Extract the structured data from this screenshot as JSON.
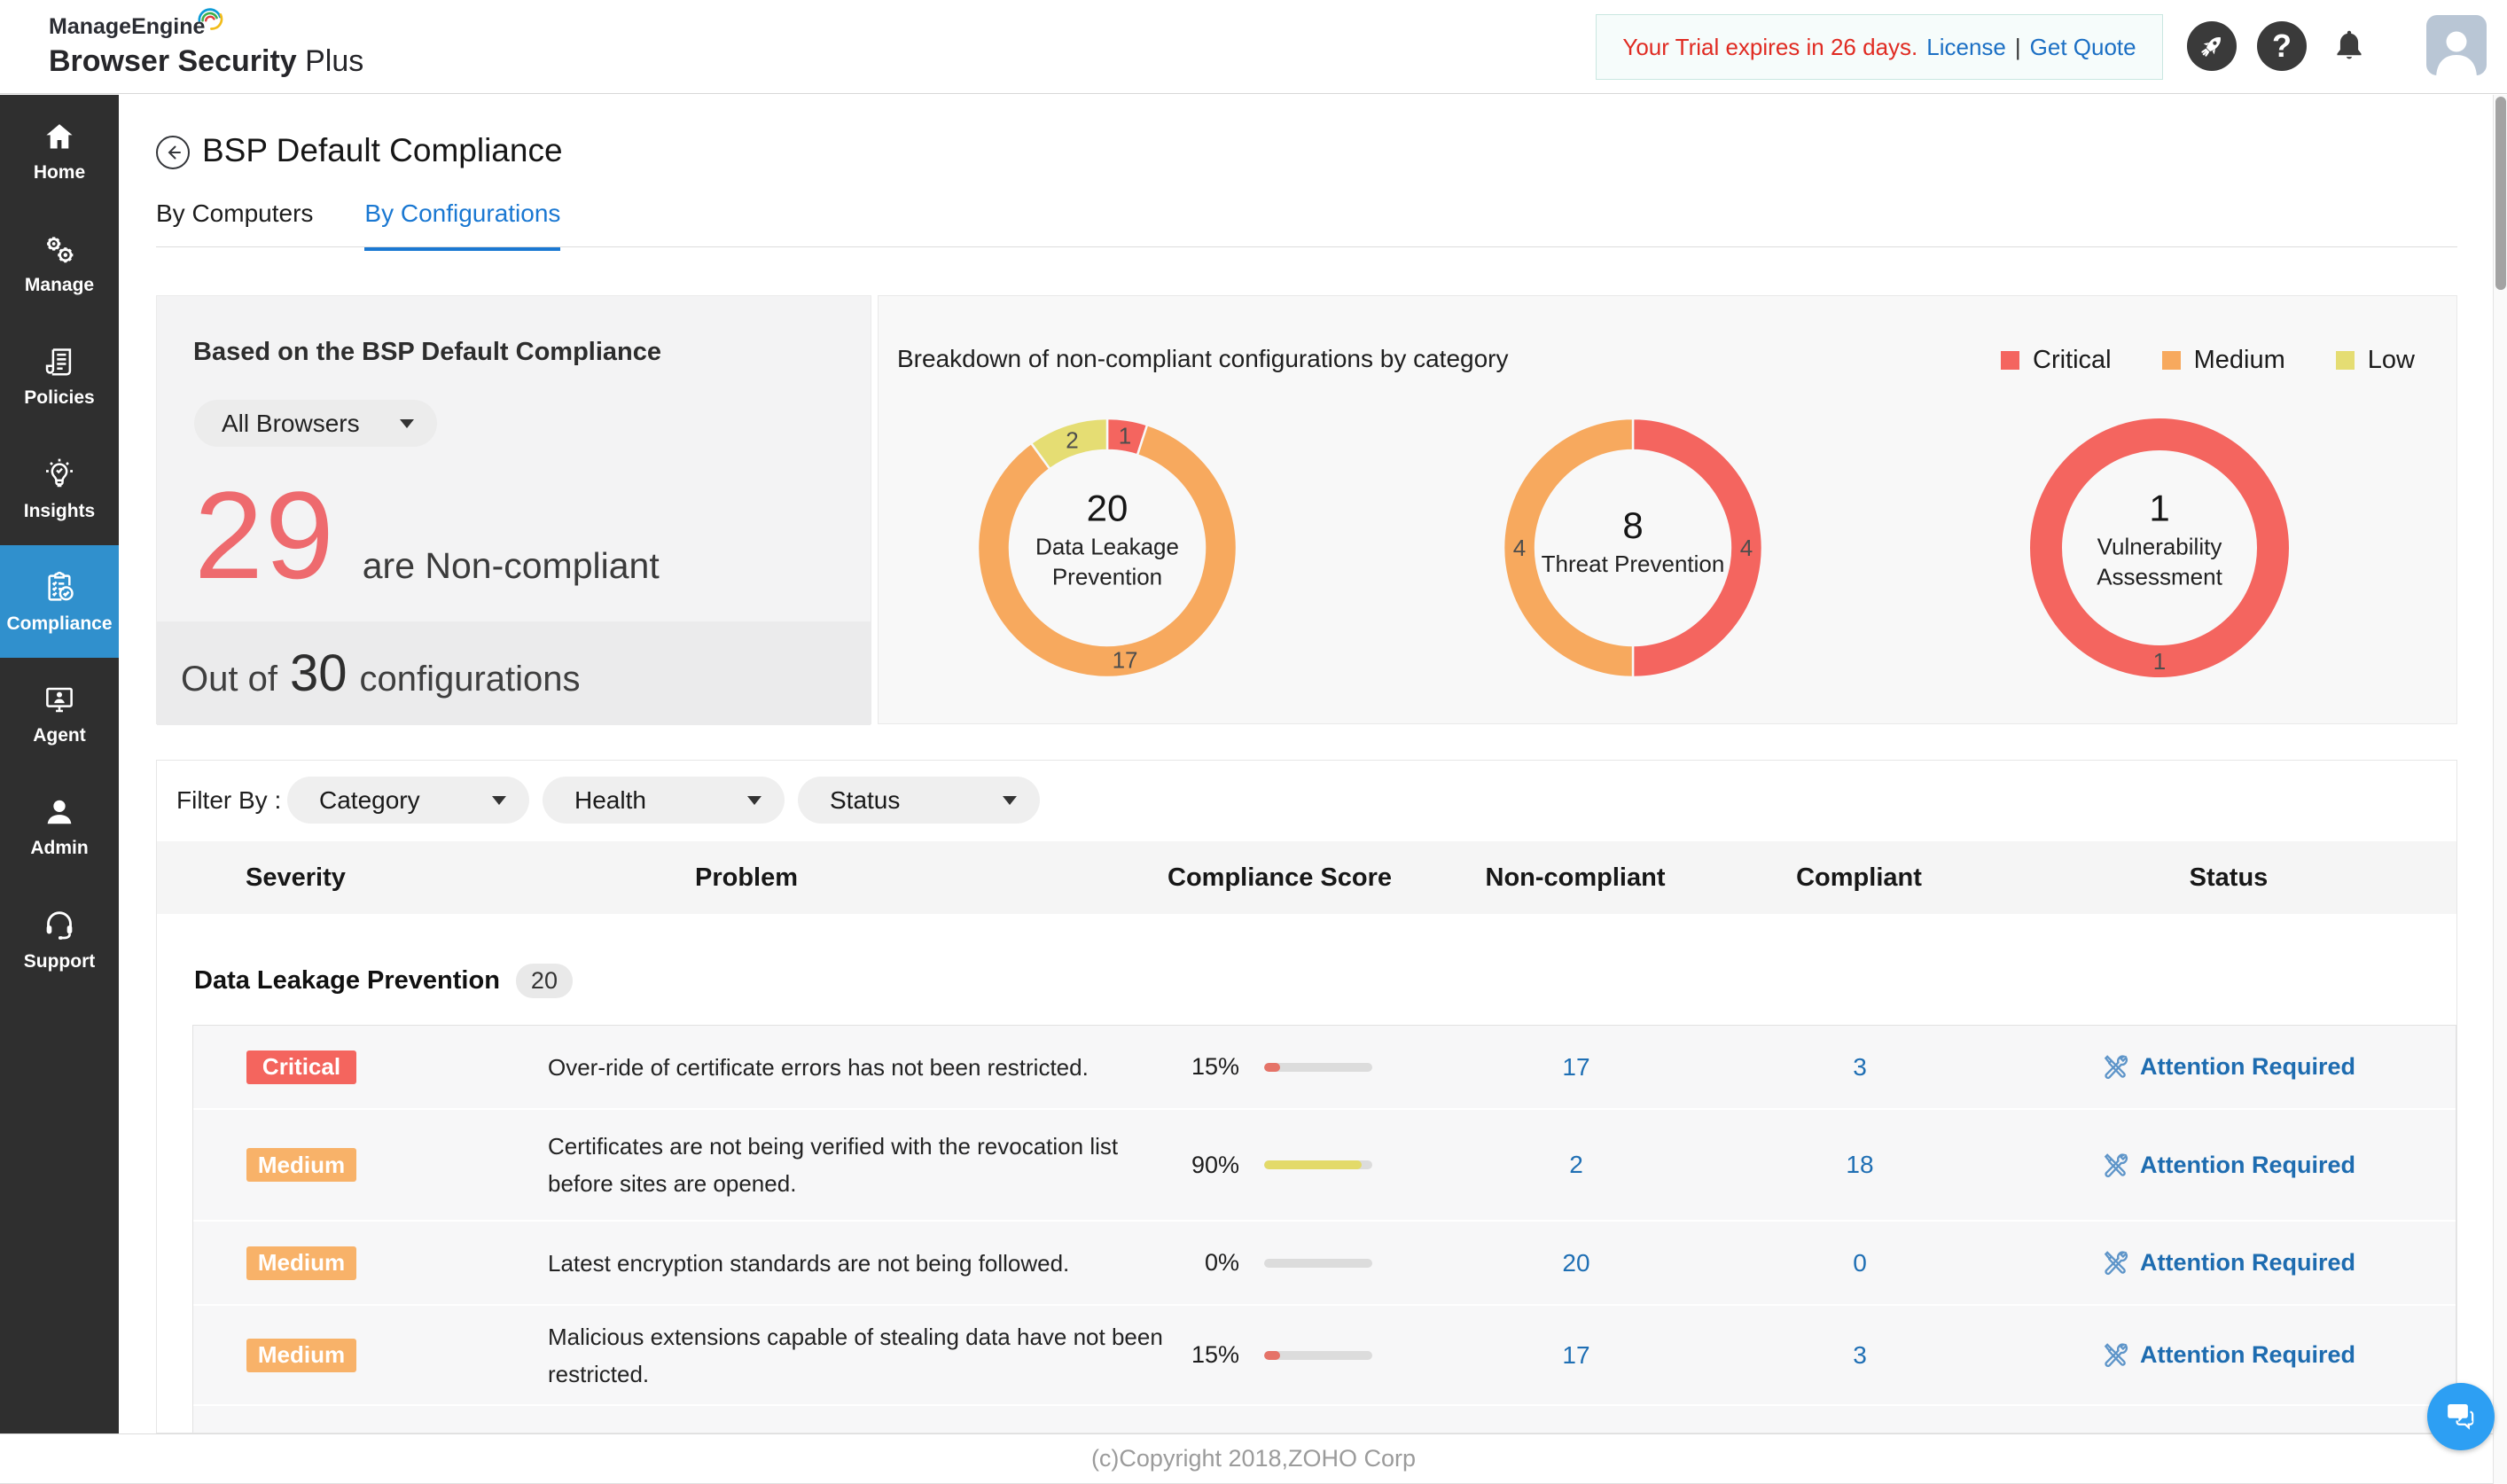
{
  "header": {
    "logo_line1": "ManageEngine",
    "logo_line2_bold": "Browser Security",
    "logo_line2_light": "Plus",
    "trial": {
      "message": "Your Trial expires in 26 days.",
      "license_label": "License",
      "separator": "|",
      "quote_label": "Get Quote"
    }
  },
  "sidebar": {
    "items": [
      {
        "label": "Home",
        "icon": "home",
        "active": false
      },
      {
        "label": "Manage",
        "icon": "manage",
        "active": false
      },
      {
        "label": "Policies",
        "icon": "policies",
        "active": false
      },
      {
        "label": "Insights",
        "icon": "insights",
        "active": false
      },
      {
        "label": "Compliance",
        "icon": "compliance",
        "active": true
      },
      {
        "label": "Agent",
        "icon": "agent",
        "active": false
      },
      {
        "label": "Admin",
        "icon": "admin",
        "active": false
      },
      {
        "label": "Support",
        "icon": "support",
        "active": false
      }
    ]
  },
  "page": {
    "title": "BSP Default Compliance",
    "tabs": [
      {
        "label": "By Computers",
        "active": false
      },
      {
        "label": "By Configurations",
        "active": true
      }
    ],
    "summary": {
      "heading": "Based on the BSP Default Compliance",
      "browser_filter": "All Browsers",
      "count": "29",
      "count_suffix": "are Non-compliant",
      "total_prefix": "Out of",
      "total": "30",
      "total_suffix": "configurations"
    },
    "filters": {
      "label": "Filter By :",
      "dropdowns": [
        "Category",
        "Health",
        "Status"
      ]
    }
  },
  "chart_data": {
    "type": "pie",
    "variant": "donut-set",
    "title": "Breakdown of non-compliant configurations by category",
    "legend_position": "top-right",
    "legend": [
      {
        "label": "Critical",
        "color": "#f4655f"
      },
      {
        "label": "Medium",
        "color": "#f7a95e"
      },
      {
        "label": "Low",
        "color": "#e5dd73"
      }
    ],
    "donuts": [
      {
        "label": "Data Leakage Prevention",
        "total": 20,
        "segments": [
          {
            "name": "Critical",
            "value": 1,
            "color": "#f4655f"
          },
          {
            "name": "Medium",
            "value": 17,
            "color": "#f7a95e"
          },
          {
            "name": "Low",
            "value": 2,
            "color": "#e5dd73"
          }
        ]
      },
      {
        "label": "Threat Prevention",
        "total": 8,
        "segments": [
          {
            "name": "Critical",
            "value": 4,
            "color": "#f4655f"
          },
          {
            "name": "Medium",
            "value": 4,
            "color": "#f7a95e"
          }
        ]
      },
      {
        "label": "Vulnerability Assessment",
        "total": 1,
        "segments": [
          {
            "name": "Critical",
            "value": 1,
            "color": "#f4655f"
          }
        ]
      }
    ]
  },
  "table": {
    "columns": [
      "Severity",
      "Problem",
      "Compliance Score",
      "Non-compliant",
      "Compliant",
      "Status"
    ],
    "section": {
      "name": "Data Leakage Prevention",
      "count": "20"
    },
    "rows": [
      {
        "severity": "Critical",
        "severity_color": "#f4655e",
        "problem": "Over-ride of certificate errors has not been restricted.",
        "score": "15%",
        "score_pct": 15,
        "bar_color": "#e57368",
        "non_compliant": "17",
        "compliant": "3",
        "status": "Attention Required"
      },
      {
        "severity": "Medium",
        "severity_color": "#f8b269",
        "problem": "Certificates are not being verified with the revocation list before sites are opened.",
        "score": "90%",
        "score_pct": 90,
        "bar_color": "#e3da69",
        "non_compliant": "2",
        "compliant": "18",
        "status": "Attention Required"
      },
      {
        "severity": "Medium",
        "severity_color": "#f8b269",
        "problem": "Latest encryption standards are not being followed.",
        "score": "0%",
        "score_pct": 0,
        "bar_color": "#e57368",
        "non_compliant": "20",
        "compliant": "0",
        "status": "Attention Required"
      },
      {
        "severity": "Medium",
        "severity_color": "#f8b269",
        "problem": "Malicious extensions capable of stealing data have not been restricted.",
        "score": "15%",
        "score_pct": 15,
        "bar_color": "#e57368",
        "non_compliant": "17",
        "compliant": "3",
        "status": "Attention Required"
      }
    ]
  },
  "footer": {
    "copyright": "(c)Copyright 2018,ZOHO Corp"
  }
}
